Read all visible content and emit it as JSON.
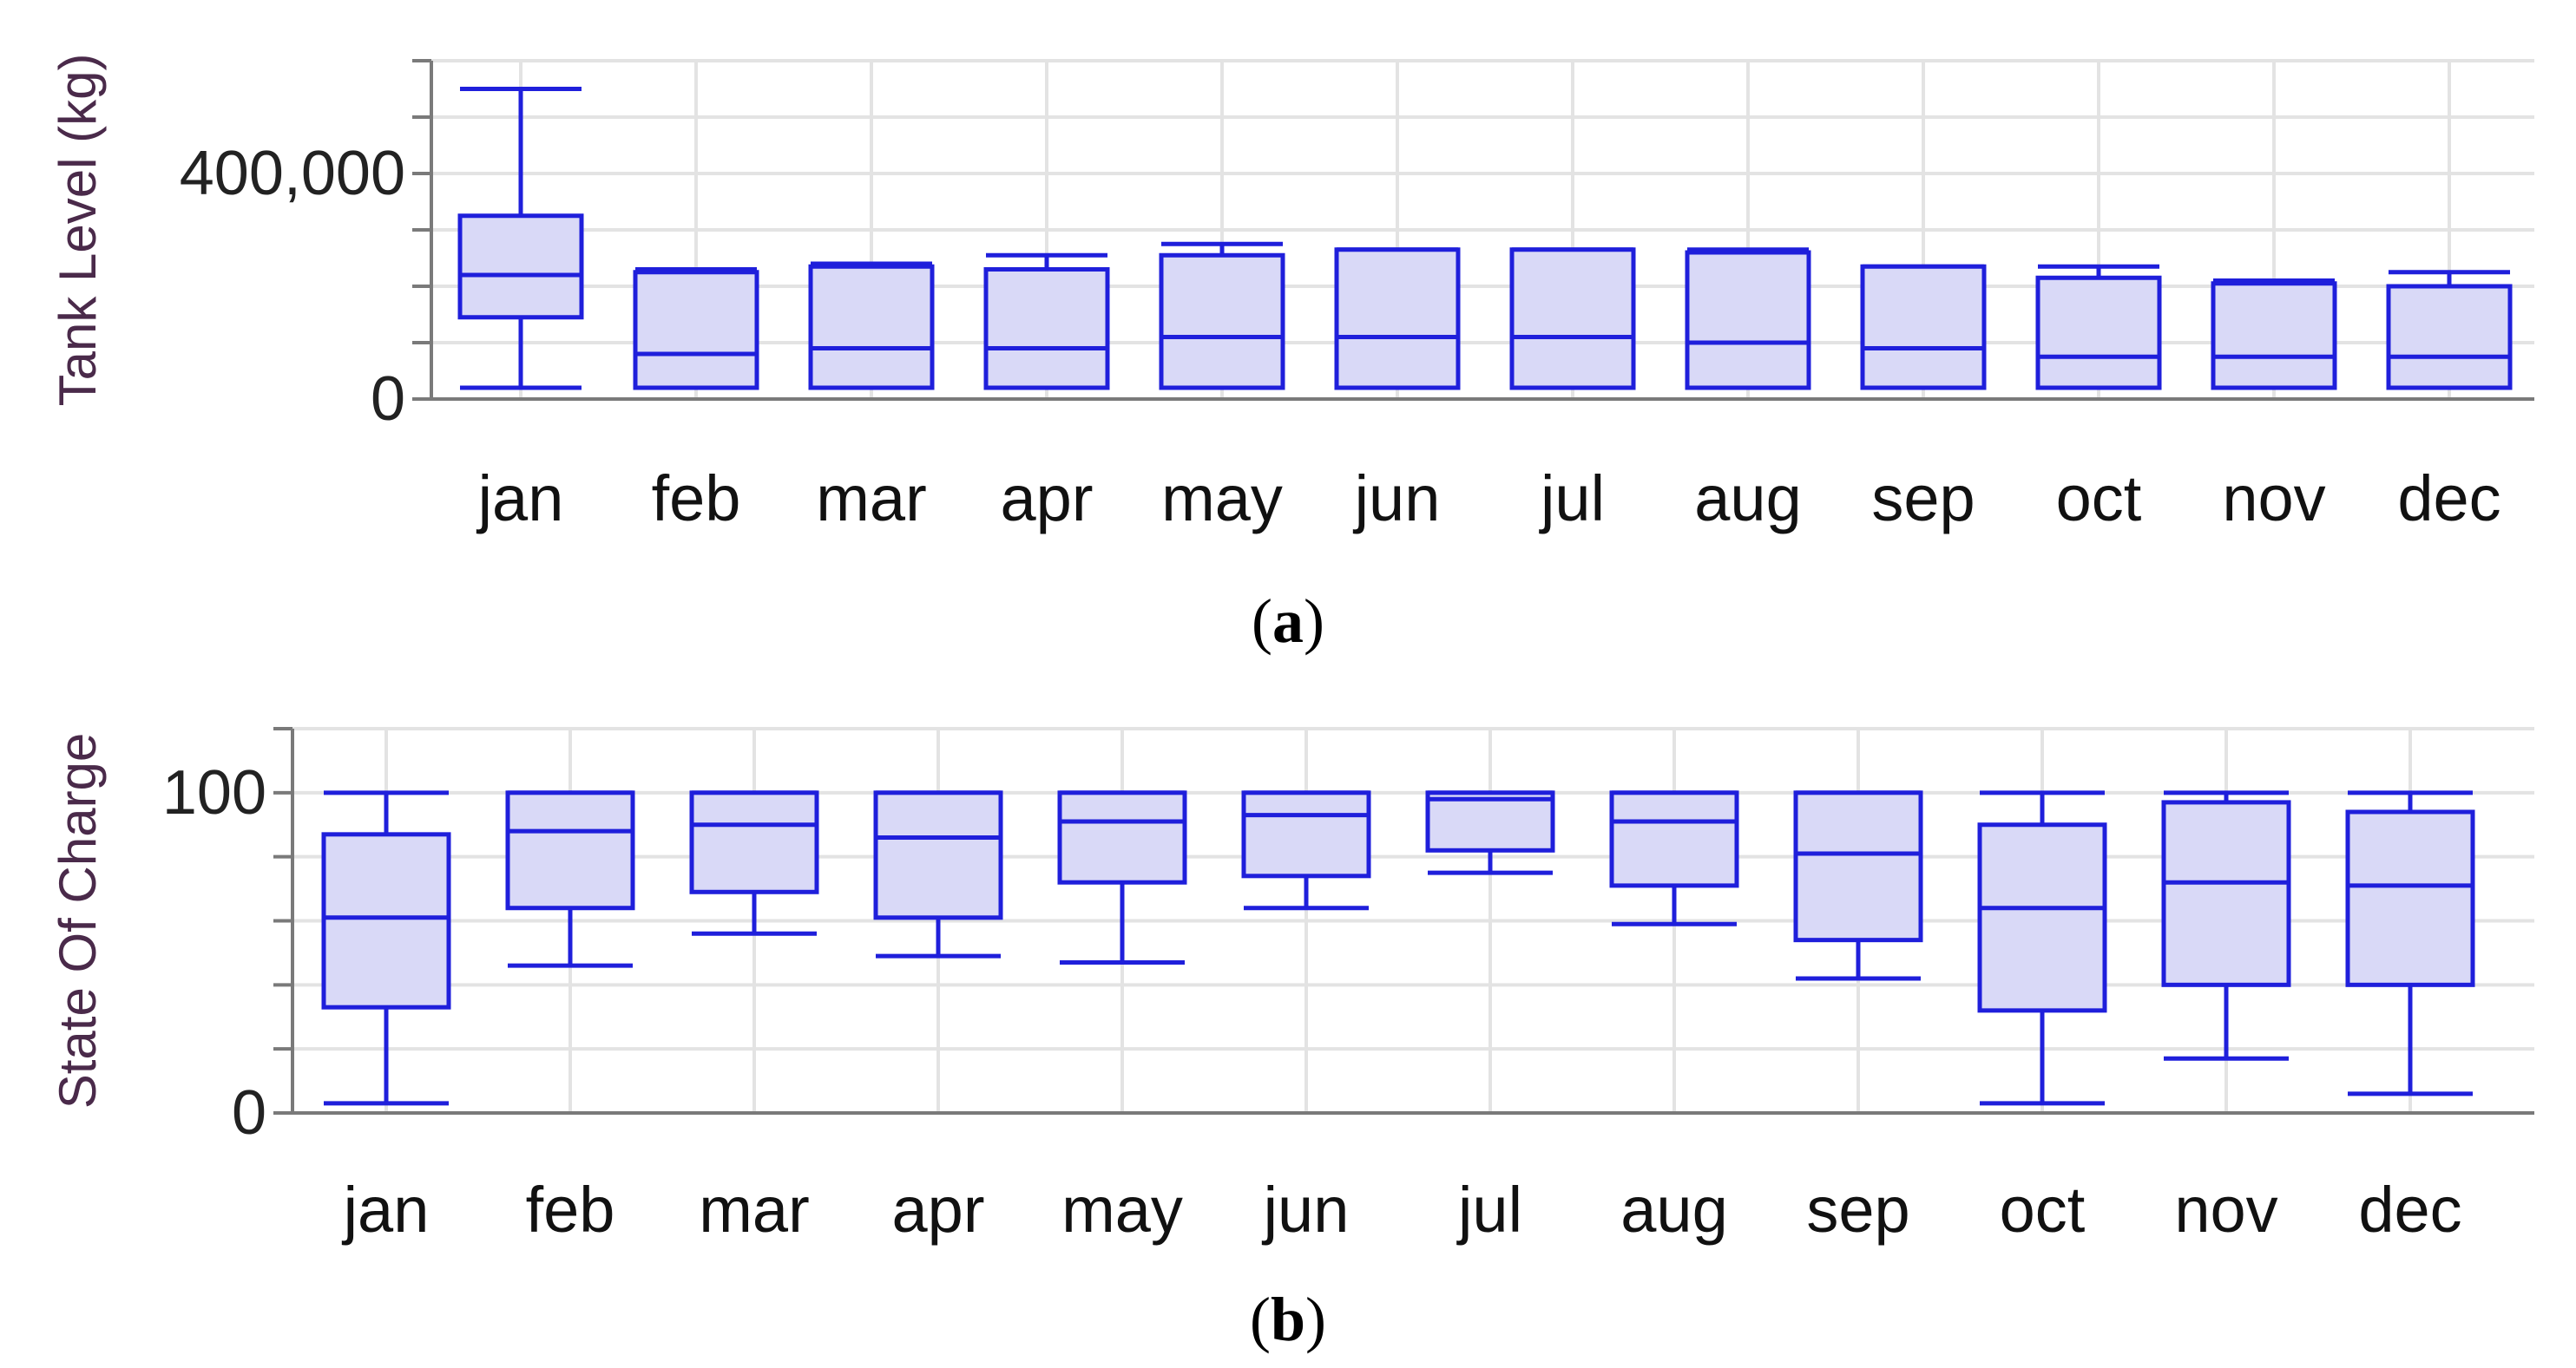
{
  "colors": {
    "box_stroke": "#1f1fdb",
    "box_fill": "#d9d9f7",
    "grid": "#e3e3e3",
    "axis": "#7a7a7a"
  },
  "chart_data": [
    {
      "type": "box",
      "caption": "(a)",
      "caption_letter": "a",
      "ylabel": "Tank Level (kg)",
      "ylim": [
        0,
        600000
      ],
      "yticks": [
        0,
        400000
      ],
      "ytick_labels": [
        "0",
        "400,000"
      ],
      "ygrid": [
        0,
        100000,
        200000,
        300000,
        400000,
        500000,
        600000
      ],
      "grid": true,
      "categories": [
        "jan",
        "feb",
        "mar",
        "apr",
        "may",
        "jun",
        "jul",
        "aug",
        "sep",
        "oct",
        "nov",
        "dec"
      ],
      "boxes": [
        {
          "min": 20000,
          "q1": 145000,
          "median": 220000,
          "q3": 325000,
          "max": 550000
        },
        {
          "min": 20000,
          "q1": 20000,
          "median": 80000,
          "q3": 225000,
          "max": 230000
        },
        {
          "min": 20000,
          "q1": 20000,
          "median": 90000,
          "q3": 235000,
          "max": 240000
        },
        {
          "min": 20000,
          "q1": 20000,
          "median": 90000,
          "q3": 230000,
          "max": 255000
        },
        {
          "min": 20000,
          "q1": 20000,
          "median": 110000,
          "q3": 255000,
          "max": 275000
        },
        {
          "min": 20000,
          "q1": 20000,
          "median": 110000,
          "q3": 265000,
          "max": 265000
        },
        {
          "min": 20000,
          "q1": 20000,
          "median": 110000,
          "q3": 265000,
          "max": 265000
        },
        {
          "min": 20000,
          "q1": 20000,
          "median": 100000,
          "q3": 260000,
          "max": 265000
        },
        {
          "min": 20000,
          "q1": 20000,
          "median": 90000,
          "q3": 235000,
          "max": 235000
        },
        {
          "min": 20000,
          "q1": 20000,
          "median": 75000,
          "q3": 215000,
          "max": 235000
        },
        {
          "min": 20000,
          "q1": 20000,
          "median": 75000,
          "q3": 205000,
          "max": 210000
        },
        {
          "min": 20000,
          "q1": 20000,
          "median": 75000,
          "q3": 200000,
          "max": 225000
        }
      ]
    },
    {
      "type": "box",
      "caption": "(b)",
      "caption_letter": "b",
      "ylabel": "State Of Charge",
      "ylim": [
        0,
        120
      ],
      "yticks": [
        0,
        100
      ],
      "ytick_labels": [
        "0",
        "100"
      ],
      "ygrid": [
        0,
        20,
        40,
        60,
        80,
        100,
        120
      ],
      "grid": true,
      "categories": [
        "jan",
        "feb",
        "mar",
        "apr",
        "may",
        "jun",
        "jul",
        "aug",
        "sep",
        "oct",
        "nov",
        "dec"
      ],
      "boxes": [
        {
          "min": 3,
          "q1": 33,
          "median": 61,
          "q3": 87,
          "max": 100
        },
        {
          "min": 46,
          "q1": 64,
          "median": 88,
          "q3": 100,
          "max": 100
        },
        {
          "min": 56,
          "q1": 69,
          "median": 90,
          "q3": 100,
          "max": 100
        },
        {
          "min": 49,
          "q1": 61,
          "median": 86,
          "q3": 100,
          "max": 100
        },
        {
          "min": 47,
          "q1": 72,
          "median": 91,
          "q3": 100,
          "max": 100
        },
        {
          "min": 64,
          "q1": 74,
          "median": 93,
          "q3": 100,
          "max": 100
        },
        {
          "min": 75,
          "q1": 82,
          "median": 98,
          "q3": 100,
          "max": 100
        },
        {
          "min": 59,
          "q1": 71,
          "median": 91,
          "q3": 100,
          "max": 100
        },
        {
          "min": 42,
          "q1": 54,
          "median": 81,
          "q3": 100,
          "max": 100
        },
        {
          "min": 3,
          "q1": 32,
          "median": 64,
          "q3": 90,
          "max": 100
        },
        {
          "min": 17,
          "q1": 40,
          "median": 72,
          "q3": 97,
          "max": 100
        },
        {
          "min": 6,
          "q1": 40,
          "median": 71,
          "q3": 94,
          "max": 100
        }
      ]
    }
  ]
}
